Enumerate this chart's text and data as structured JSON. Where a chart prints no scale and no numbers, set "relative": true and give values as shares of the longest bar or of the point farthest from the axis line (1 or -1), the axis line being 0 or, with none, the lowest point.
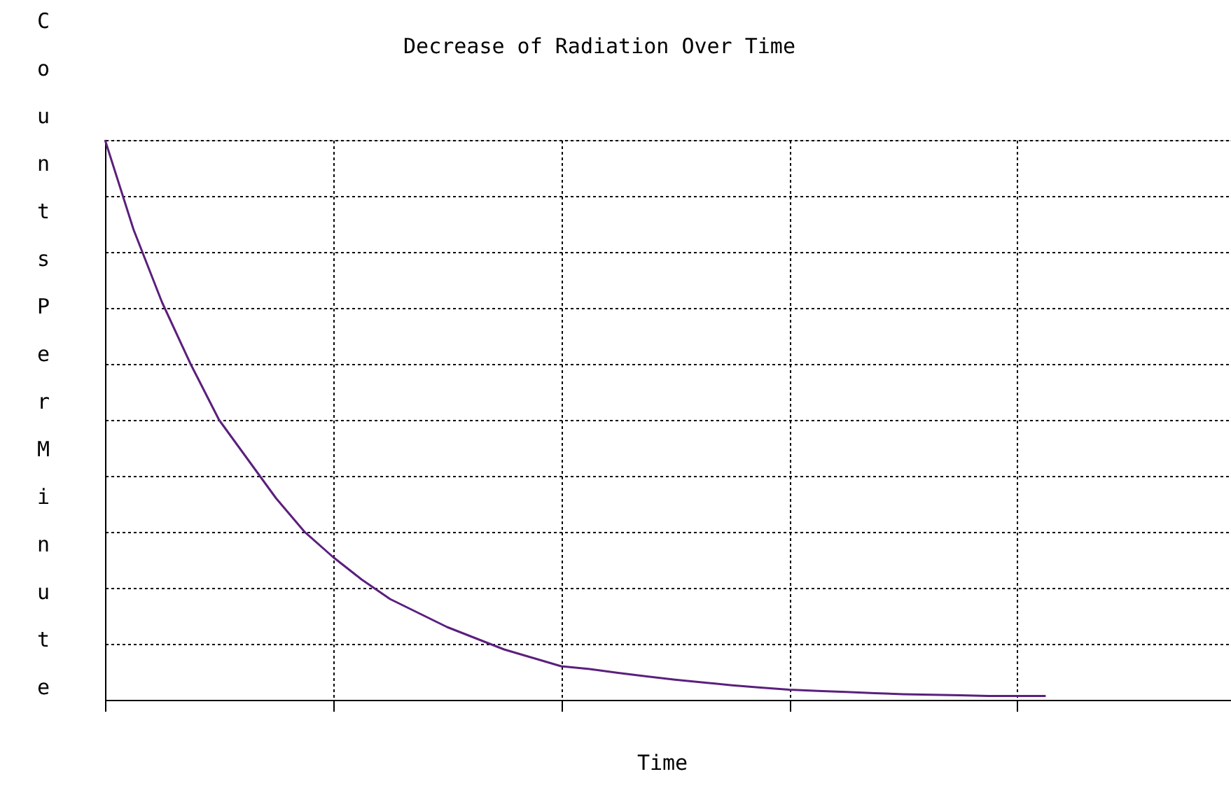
{
  "chart_data": {
    "type": "line",
    "title": "Decrease of Radiation Over Time",
    "xlabel": "Time",
    "ylabel": "Counts Per Minute",
    "categories": [
      null,
      null,
      null,
      null,
      null,
      null,
      null,
      null,
      null,
      null,
      null,
      null,
      null,
      null,
      null,
      null,
      null,
      null,
      null,
      null,
      null,
      null,
      null,
      null,
      null,
      null,
      null,
      null,
      null,
      null,
      null,
      null,
      null,
      null
    ],
    "series": [
      {
        "color": "#5b1f7d",
        "values": [
          1.0,
          0.84,
          0.71,
          0.6,
          0.5,
          0.43,
          0.36,
          0.3,
          0.255,
          0.215,
          0.18,
          0.155,
          0.13,
          0.11,
          0.09,
          0.075,
          0.06,
          0.055,
          0.048,
          0.042,
          0.036,
          0.031,
          0.026,
          0.022,
          0.018,
          0.016,
          0.014,
          0.012,
          0.01,
          0.009,
          0.008,
          0.007,
          0.007,
          0.007
        ]
      }
    ],
    "relative": true,
    "grid": true,
    "marker": "none",
    "line_style": "solid"
  }
}
